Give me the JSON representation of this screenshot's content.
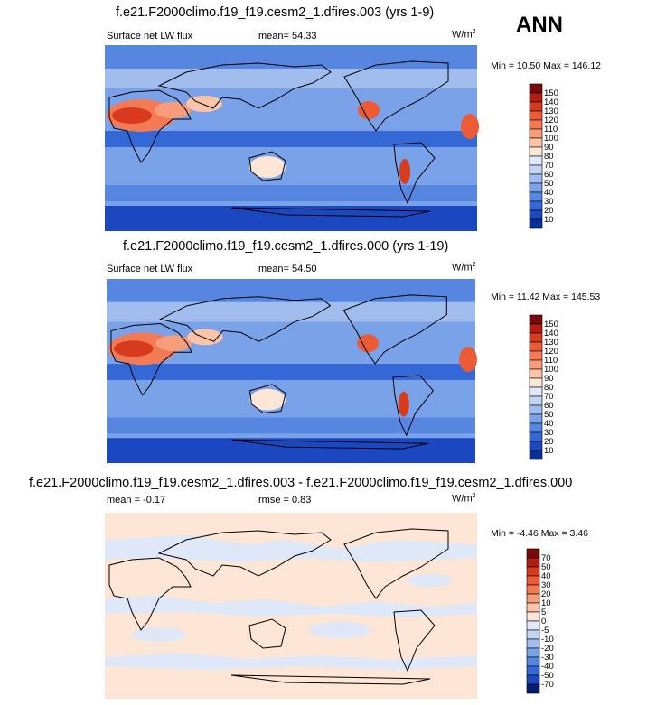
{
  "season": "ANN",
  "panels": [
    {
      "title": "f.e21.F2000climo.f19_f19.cesm2_1.dfires.003 (yrs 1-9)",
      "left_label": "Surface net LW flux",
      "center_label": "mean=  54.33",
      "units": "W/m",
      "units_sup": "2",
      "minmax": "Min =  10.50 Max = 146.12",
      "colorbar_labels": [
        "150",
        "140",
        "130",
        "120",
        "110",
        "100",
        "90",
        "80",
        "70",
        "60",
        "50",
        "40",
        "30",
        "20",
        "10"
      ]
    },
    {
      "title": "f.e21.F2000climo.f19_f19.cesm2_1.dfires.000 (yrs 1-19)",
      "left_label": "Surface net LW flux",
      "center_label": "mean=  54.50",
      "units": "W/m",
      "units_sup": "2",
      "minmax": "Min =  11.42 Max = 145.53",
      "colorbar_labels": [
        "150",
        "140",
        "130",
        "120",
        "110",
        "100",
        "90",
        "80",
        "70",
        "60",
        "50",
        "40",
        "30",
        "20",
        "10"
      ]
    },
    {
      "title": "f.e21.F2000climo.f19_f19.cesm2_1.dfires.003 - f.e21.F2000climo.f19_f19.cesm2_1.dfires.000",
      "left_label": "mean =  -0.17",
      "center_label": "rmse =  0.83",
      "units": "W/m",
      "units_sup": "2",
      "minmax": "Min = -4.46 Max =  3.46",
      "colorbar_labels": [
        "70",
        "50",
        "40",
        "30",
        "20",
        "10",
        "5",
        "0",
        "-5",
        "-10",
        "-20",
        "-30",
        "-40",
        "-50",
        "-70"
      ]
    }
  ],
  "colors": {
    "abs_scale": [
      "#7a0a0a",
      "#b31c10",
      "#d83a1e",
      "#ec5a36",
      "#f47a55",
      "#f89d7c",
      "#fbc3a8",
      "#fde6d6",
      "#dfe8f8",
      "#c3d4f3",
      "#a0bdee",
      "#7aa2e8",
      "#5686e0",
      "#3468d6",
      "#1b48c0",
      "#0a2e98",
      "#061a6e"
    ],
    "diff_scale": [
      "#7a0a0a",
      "#b31c10",
      "#d83a1e",
      "#ec5a36",
      "#f47a55",
      "#f89d7c",
      "#fbc3a8",
      "#fde6d6",
      "#dfe8f8",
      "#c3d4f3",
      "#a0bdee",
      "#7aa2e8",
      "#5686e0",
      "#3468d6",
      "#1b48c0",
      "#061a6e"
    ],
    "coastline": "#000000"
  }
}
